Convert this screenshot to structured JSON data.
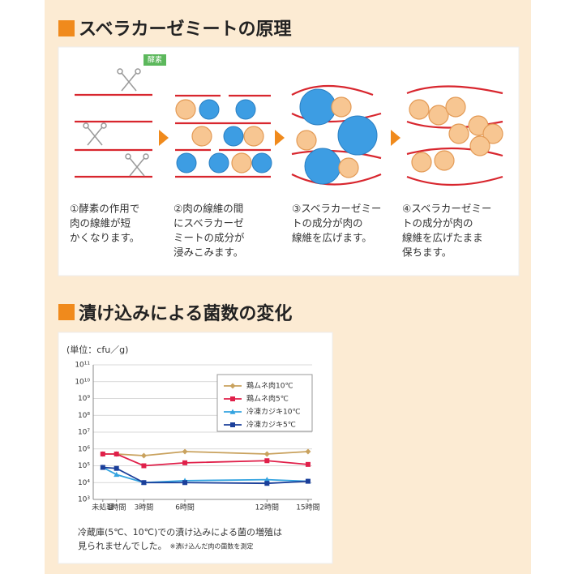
{
  "diagram": {
    "title": "スベラカーゼミートの原理",
    "tag": "酵素",
    "steps": [
      {
        "caption": [
          "①酵素の作用で",
          "肉の線維が短",
          "かくなります。"
        ]
      },
      {
        "caption": [
          "②肉の線維の間",
          "にスベラカーゼ",
          "ミートの成分が",
          "浸みこみます。"
        ]
      },
      {
        "caption": [
          "③スベラカーゼミー",
          "トの成分が肉の",
          "線維を広げます。"
        ]
      },
      {
        "caption": [
          "④スベラカーゼミー",
          "トの成分が肉の",
          "線維を広げたまま",
          "保ちます。"
        ]
      }
    ]
  },
  "chart_data": {
    "type": "line",
    "title": "漬け込みによる菌数の変化",
    "y_label": "(単位：cfu／g)",
    "x": [
      0,
      1,
      3,
      6,
      12,
      15
    ],
    "xlim": [
      -0.7,
      15.3
    ],
    "xticks": [
      {
        "value": 0,
        "label": "未処理"
      },
      {
        "value": 1,
        "label": "1時間"
      },
      {
        "value": 3,
        "label": "3時間"
      },
      {
        "value": 6,
        "label": "6時間"
      },
      {
        "value": 12,
        "label": "12時間"
      },
      {
        "value": 15,
        "label": "15時間"
      }
    ],
    "log_scale": true,
    "ylim": [
      1000,
      100000000000
    ],
    "yticks": [
      {
        "value": 1000,
        "label": "10³"
      },
      {
        "value": 10000,
        "label": "10⁴"
      },
      {
        "value": 100000,
        "label": "10⁵"
      },
      {
        "value": 1000000,
        "label": "10⁶"
      },
      {
        "value": 10000000,
        "label": "10⁷"
      },
      {
        "value": 100000000,
        "label": "10⁸"
      },
      {
        "value": 1000000000,
        "label": "10⁹"
      },
      {
        "value": 10000000000,
        "label": "10¹⁰"
      },
      {
        "value": 100000000000,
        "label": "10¹¹"
      }
    ],
    "grid": true,
    "legend": "upper right",
    "series": [
      {
        "name": "鶏ムネ肉10℃",
        "color": "#c9a25e",
        "marker": "diamond",
        "values": [
          500000,
          500000,
          400000,
          700000,
          500000,
          700000
        ]
      },
      {
        "name": "鶏ムネ肉5℃",
        "color": "#e0204a",
        "marker": "square",
        "values": [
          500000,
          500000,
          100000,
          150000,
          200000,
          120000
        ]
      },
      {
        "name": "冷凍カジキ10℃",
        "color": "#33a3e0",
        "marker": "triangle",
        "values": [
          80000,
          30000,
          10000,
          13000,
          15000,
          12000
        ]
      },
      {
        "name": "冷凍カジキ5℃",
        "color": "#1b3f9a",
        "marker": "square",
        "values": [
          80000,
          70000,
          10000,
          10000,
          9000,
          12000
        ]
      }
    ],
    "note_lines": [
      "冷蔵庫(5℃、10℃)での漬け込みによる菌の増殖は",
      "見られませんでした。"
    ],
    "footnote": "※漬け込んだ肉の菌数を測定"
  }
}
